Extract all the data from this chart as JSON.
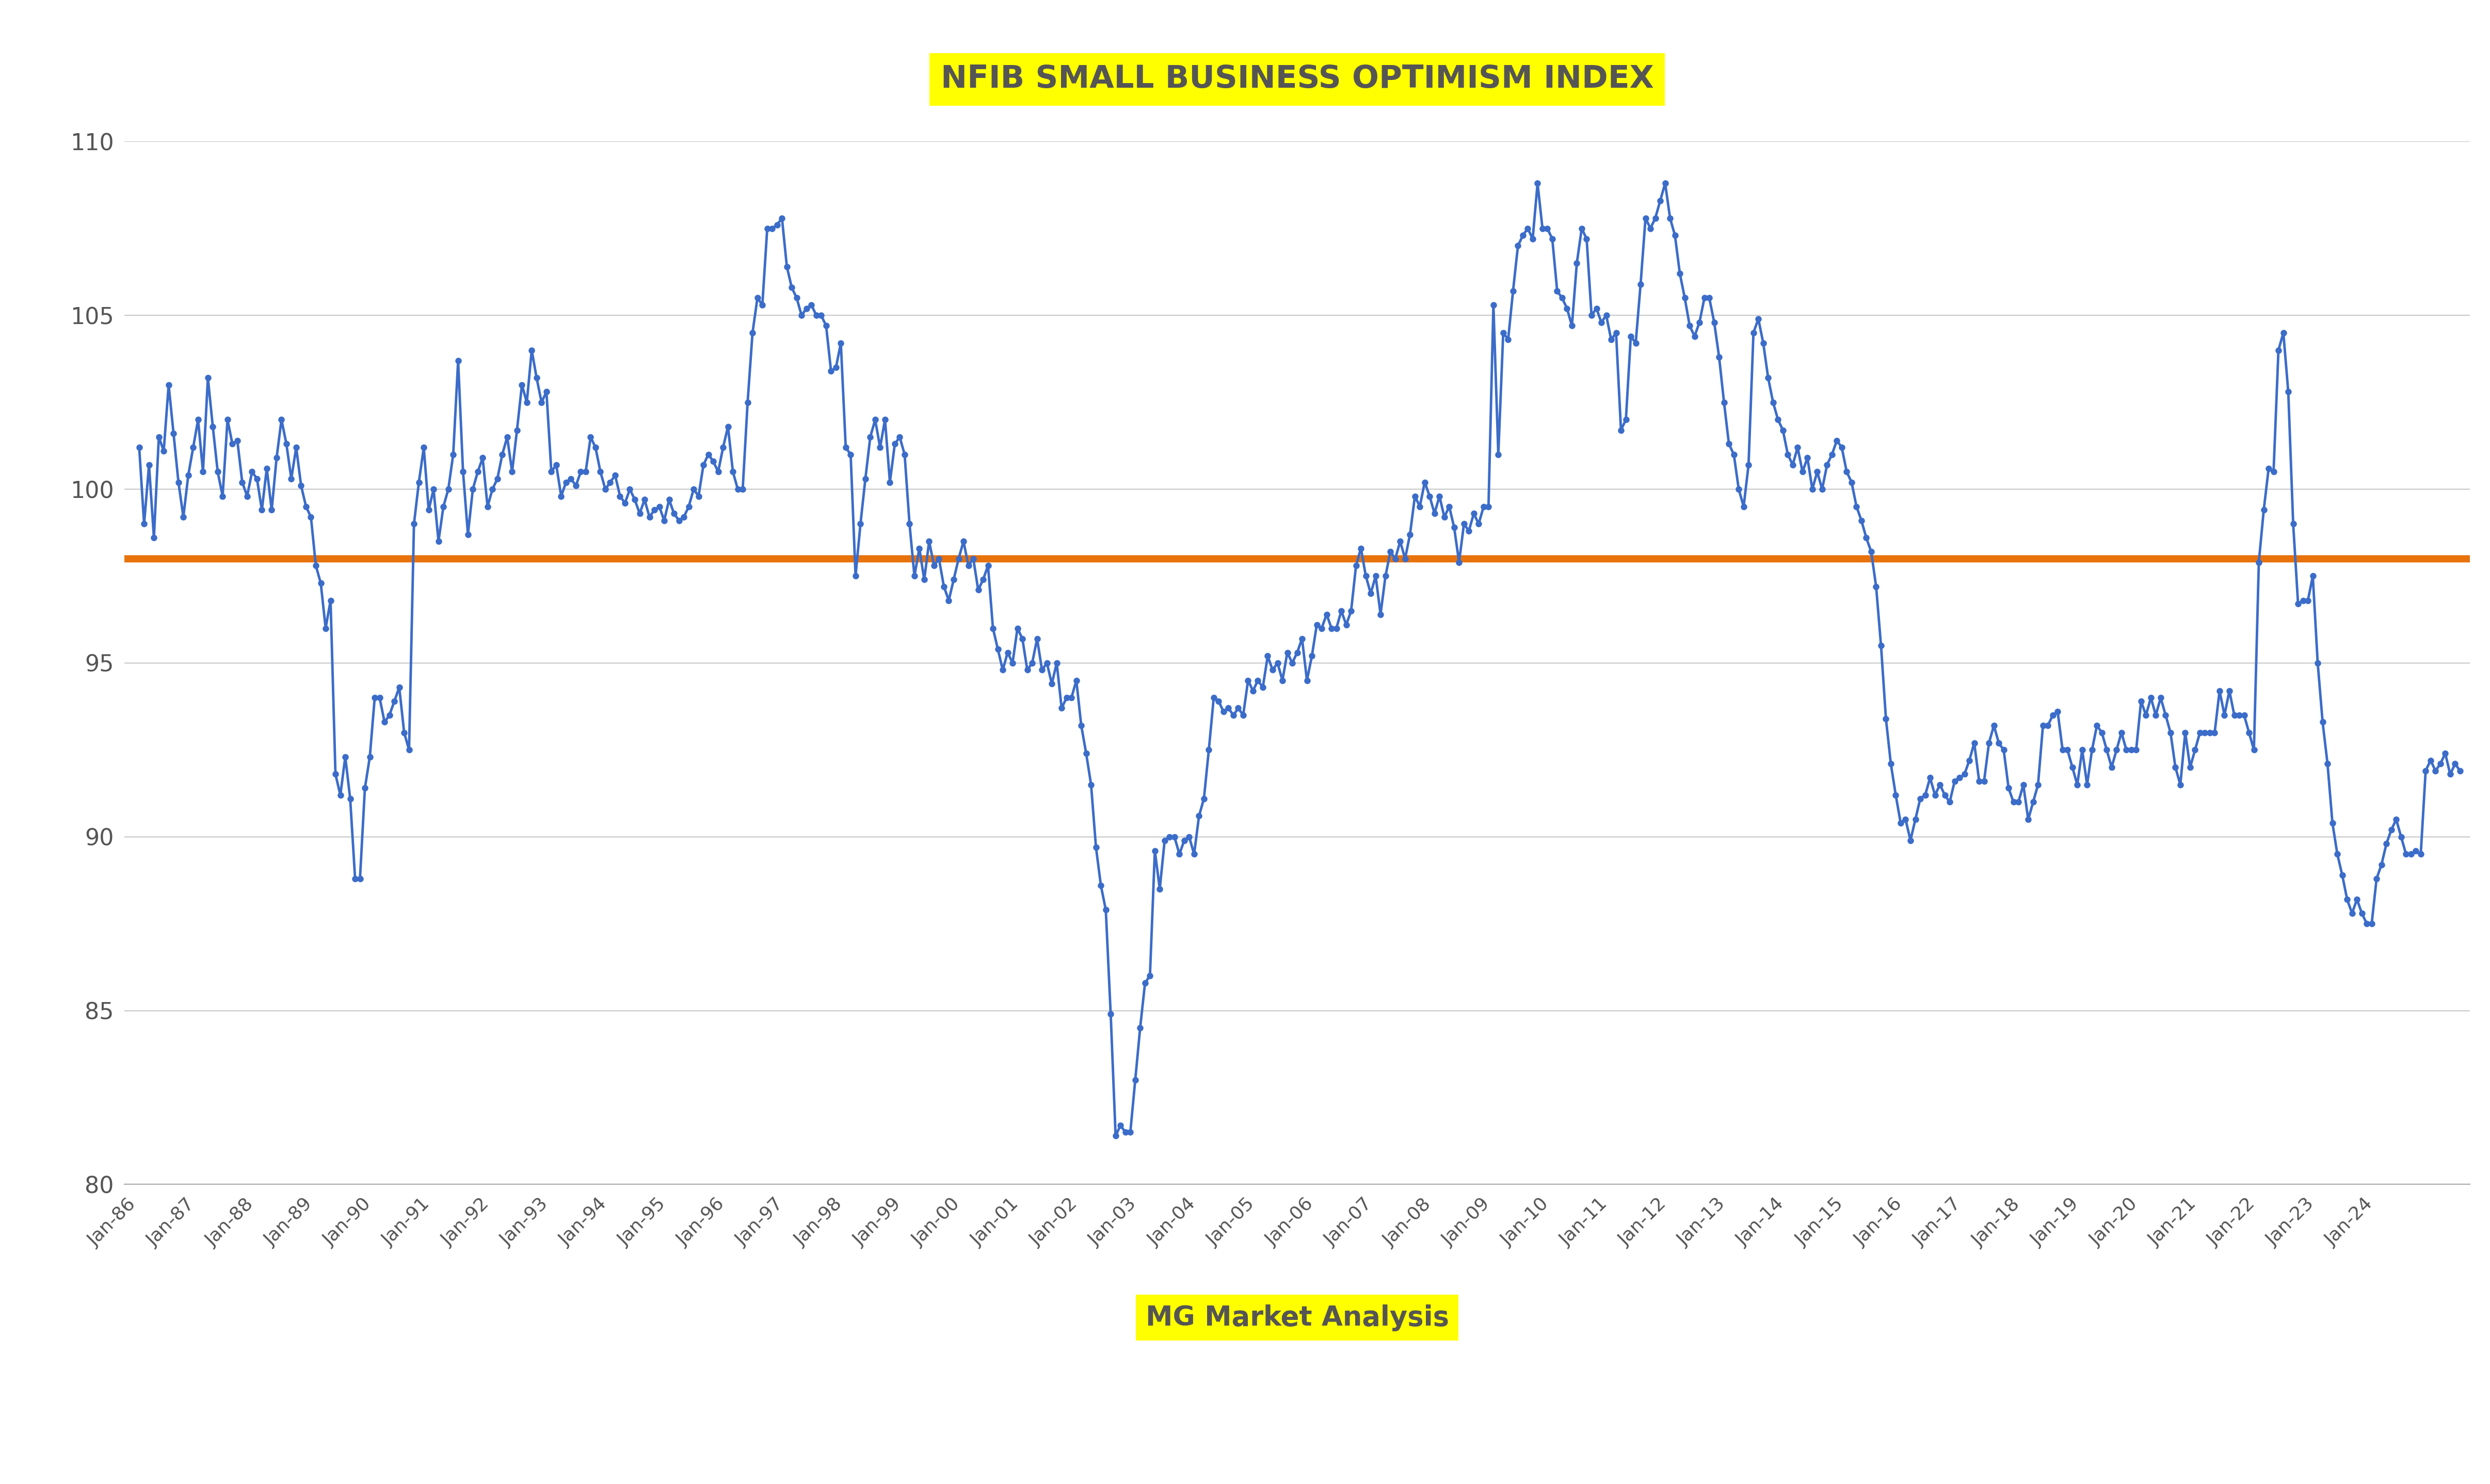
{
  "title": "NFIB SMALL BUSINESS OPTIMISM INDEX",
  "subtitle": "MG Market Analysis",
  "title_bg": "#FFFF00",
  "subtitle_bg": "#FFFF00",
  "line_color": "#3B6CC9",
  "marker_color": "#3B6CC9",
  "avg_line_color": "#E8720C",
  "avg_line_value": 98.0,
  "ylim": [
    80,
    110
  ],
  "yticks": [
    80,
    85,
    90,
    95,
    100,
    105,
    110
  ],
  "bg_color": "#FFFFFF",
  "grid_color": "#C8C8C8",
  "values": [
    101.2,
    99.0,
    100.7,
    98.6,
    101.5,
    101.1,
    103.0,
    101.6,
    100.2,
    99.2,
    100.4,
    101.2,
    102.0,
    100.5,
    103.2,
    101.8,
    100.5,
    99.8,
    102.0,
    101.3,
    101.4,
    100.2,
    99.8,
    100.5,
    100.3,
    99.4,
    100.6,
    99.4,
    100.9,
    102.0,
    101.3,
    100.3,
    101.2,
    100.1,
    99.5,
    99.2,
    97.8,
    97.3,
    96.0,
    96.8,
    91.8,
    91.2,
    92.3,
    91.1,
    88.8,
    88.8,
    91.4,
    92.3,
    94.0,
    94.0,
    93.3,
    93.5,
    93.9,
    94.3,
    93.0,
    92.5,
    99.0,
    100.2,
    101.2,
    99.4,
    100.0,
    98.5,
    99.5,
    100.0,
    101.0,
    103.7,
    100.5,
    98.7,
    100.0,
    100.5,
    100.9,
    99.5,
    100.0,
    100.3,
    101.0,
    101.5,
    100.5,
    101.7,
    103.0,
    102.5,
    104.0,
    103.2,
    102.5,
    102.8,
    100.5,
    100.7,
    99.8,
    100.2,
    100.3,
    100.1,
    100.5,
    100.5,
    101.5,
    101.2,
    100.5,
    100.0,
    100.2,
    100.4,
    99.8,
    99.6,
    100.0,
    99.7,
    99.3,
    99.7,
    99.2,
    99.4,
    99.5,
    99.1,
    99.7,
    99.3,
    99.1,
    99.2,
    99.5,
    100.0,
    99.8,
    100.7,
    101.0,
    100.8,
    100.5,
    101.2,
    101.8,
    100.5,
    100.0,
    100.0,
    102.5,
    104.5,
    105.5,
    105.3,
    107.5,
    107.5,
    107.6,
    107.8,
    106.4,
    105.8,
    105.5,
    105.0,
    105.2,
    105.3,
    105.0,
    105.0,
    104.7,
    103.4,
    103.5,
    104.2,
    101.2,
    101.0,
    97.5,
    99.0,
    100.3,
    101.5,
    102.0,
    101.2,
    102.0,
    100.2,
    101.3,
    101.5,
    101.0,
    99.0,
    97.5,
    98.3,
    97.4,
    98.5,
    97.8,
    98.0,
    97.2,
    96.8,
    97.4,
    98.0,
    98.5,
    97.8,
    98.0,
    97.1,
    97.4,
    97.8,
    96.0,
    95.4,
    94.8,
    95.3,
    95.0,
    96.0,
    95.7,
    94.8,
    95.0,
    95.7,
    94.8,
    95.0,
    94.4,
    95.0,
    93.7,
    94.0,
    94.0,
    94.5,
    93.2,
    92.4,
    91.5,
    89.7,
    88.6,
    87.9,
    84.9,
    81.4,
    81.7,
    81.5,
    81.5,
    83.0,
    84.5,
    85.8,
    86.0,
    89.6,
    88.5,
    89.9,
    90.0,
    90.0,
    89.5,
    89.9,
    90.0,
    89.5,
    90.6,
    91.1,
    92.5,
    94.0,
    93.9,
    93.6,
    93.7,
    93.5,
    93.7,
    93.5,
    94.5,
    94.2,
    94.5,
    94.3,
    95.2,
    94.8,
    95.0,
    94.5,
    95.3,
    95.0,
    95.3,
    95.7,
    94.5,
    95.2,
    96.1,
    96.0,
    96.4,
    96.0,
    96.0,
    96.5,
    96.1,
    96.5,
    97.8,
    98.3,
    97.5,
    97.0,
    97.5,
    96.4,
    97.5,
    98.2,
    98.0,
    98.5,
    98.0,
    98.7,
    99.8,
    99.5,
    100.2,
    99.8,
    99.3,
    99.8,
    99.2,
    99.5,
    98.9,
    97.9,
    99.0,
    98.8,
    99.3,
    99.0,
    99.5,
    99.5,
    105.3,
    101.0,
    104.5,
    104.3,
    105.7,
    107.0,
    107.3,
    107.5,
    107.2,
    108.8,
    107.5,
    107.5,
    107.2,
    105.7,
    105.5,
    105.2,
    104.7,
    106.5,
    107.5,
    107.2,
    105.0,
    105.2,
    104.8,
    105.0,
    104.3,
    104.5,
    101.7,
    102.0,
    104.4,
    104.2,
    105.9,
    107.8,
    107.5,
    107.8,
    108.3,
    108.8,
    107.8,
    107.3,
    106.2,
    105.5,
    104.7,
    104.4,
    104.8,
    105.5,
    105.5,
    104.8,
    103.8,
    102.5,
    101.3,
    101.0,
    100.0,
    99.5,
    100.7,
    104.5,
    104.9,
    104.2,
    103.2,
    102.5,
    102.0,
    101.7,
    101.0,
    100.7,
    101.2,
    100.5,
    100.9,
    100.0,
    100.5,
    100.0,
    100.7,
    101.0,
    101.4,
    101.2,
    100.5,
    100.2,
    99.5,
    99.1,
    98.6,
    98.2,
    97.2,
    95.5,
    93.4,
    92.1,
    91.2,
    90.4,
    90.5,
    89.9,
    90.5,
    91.1,
    91.2,
    91.7,
    91.2,
    91.5,
    91.2,
    91.0,
    91.6,
    91.7,
    91.8,
    92.2,
    92.7,
    91.6,
    91.6,
    92.7,
    93.2,
    92.7,
    92.5,
    91.4,
    91.0,
    91.0,
    91.5,
    90.5,
    91.0,
    91.5,
    93.2,
    93.2,
    93.5,
    93.6,
    92.5,
    92.5,
    92.0,
    91.5,
    92.5,
    91.5,
    92.5,
    93.2,
    93.0,
    92.5,
    92.0,
    92.5,
    93.0,
    92.5,
    92.5,
    92.5,
    93.9,
    93.5,
    94.0,
    93.5,
    94.0,
    93.5,
    93.0,
    92.0,
    91.5,
    93.0,
    92.0,
    92.5,
    93.0,
    93.0,
    93.0,
    93.0,
    94.2,
    93.5,
    94.2,
    93.5,
    93.5,
    93.5,
    93.0,
    92.5,
    97.9,
    99.4,
    100.6,
    100.5,
    104.0,
    104.5,
    102.8,
    99.0,
    96.7,
    96.8,
    96.8,
    97.5,
    95.0,
    93.3,
    92.1,
    90.4,
    89.5,
    88.9,
    88.2,
    87.8,
    88.2,
    87.8,
    87.5,
    87.5,
    88.8,
    89.2,
    89.8,
    90.2,
    90.5,
    90.0,
    89.5,
    89.5,
    89.6,
    89.5,
    91.9,
    92.2,
    91.9,
    92.1,
    92.4,
    91.8,
    92.1,
    91.9
  ],
  "x_labels": [
    "Jan-86",
    "Jan-87",
    "Jan-88",
    "Jan-89",
    "Jan-90",
    "Jan-91",
    "Jan-92",
    "Jan-93",
    "Jan-94",
    "Jan-95",
    "Jan-96",
    "Jan-97",
    "Jan-98",
    "Jan-99",
    "Jan-00",
    "Jan-01",
    "Jan-02",
    "Jan-03",
    "Jan-04",
    "Jan-05",
    "Jan-06",
    "Jan-07",
    "Jan-08",
    "Jan-09",
    "Jan-10",
    "Jan-11",
    "Jan-12",
    "Jan-13",
    "Jan-14",
    "Jan-15",
    "Jan-16",
    "Jan-17",
    "Jan-18",
    "Jan-19",
    "Jan-20",
    "Jan-21",
    "Jan-22",
    "Jan-23",
    "Jan-24"
  ],
  "x_label_indices": [
    0,
    12,
    24,
    36,
    48,
    60,
    72,
    84,
    96,
    108,
    120,
    132,
    144,
    156,
    168,
    180,
    192,
    204,
    216,
    228,
    240,
    252,
    264,
    276,
    288,
    300,
    312,
    324,
    336,
    348,
    360,
    372,
    384,
    396,
    408,
    420,
    432,
    444,
    456
  ]
}
